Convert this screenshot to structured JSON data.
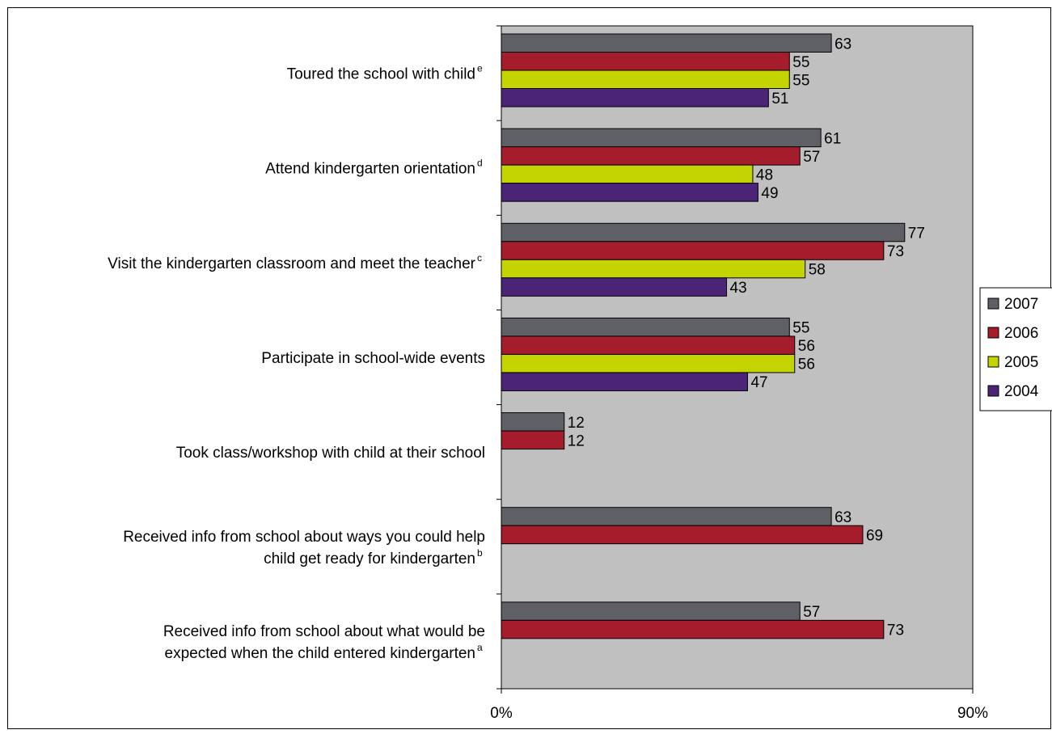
{
  "chart_data": {
    "type": "bar",
    "orientation": "horizontal",
    "categories": [
      {
        "lines": [
          "Toured the school with child"
        ],
        "sup": "e"
      },
      {
        "lines": [
          "Attend kindergarten orientation"
        ],
        "sup": "d"
      },
      {
        "lines": [
          "Visit the kindergarten classroom and meet the teacher"
        ],
        "sup": "c"
      },
      {
        "lines": [
          "Participate in school-wide events"
        ],
        "sup": ""
      },
      {
        "lines": [
          "Took class/workshop with child at their school"
        ],
        "sup": ""
      },
      {
        "lines": [
          "Received info from school about ways you could help",
          "child get ready for kindergarten"
        ],
        "sup": "b"
      },
      {
        "lines": [
          "Received info from school about what would be",
          "expected when the child entered kindergarten"
        ],
        "sup": "a"
      }
    ],
    "series": [
      {
        "name": "2007",
        "color": "#5f6065",
        "values": [
          63,
          61,
          77,
          55,
          12,
          63,
          57
        ]
      },
      {
        "name": "2006",
        "color": "#a51c2d",
        "values": [
          55,
          57,
          73,
          56,
          12,
          69,
          73
        ]
      },
      {
        "name": "2005",
        "color": "#c3d400",
        "values": [
          55,
          48,
          58,
          56,
          null,
          null,
          null
        ]
      },
      {
        "name": "2004",
        "color": "#4b2477",
        "values": [
          51,
          49,
          43,
          47,
          null,
          null,
          null
        ]
      }
    ],
    "xlim": [
      0,
      90
    ],
    "x_tick_labels": [
      "0%",
      "90%"
    ],
    "plot_background": "#c0c0c0",
    "legend_position": "right"
  }
}
